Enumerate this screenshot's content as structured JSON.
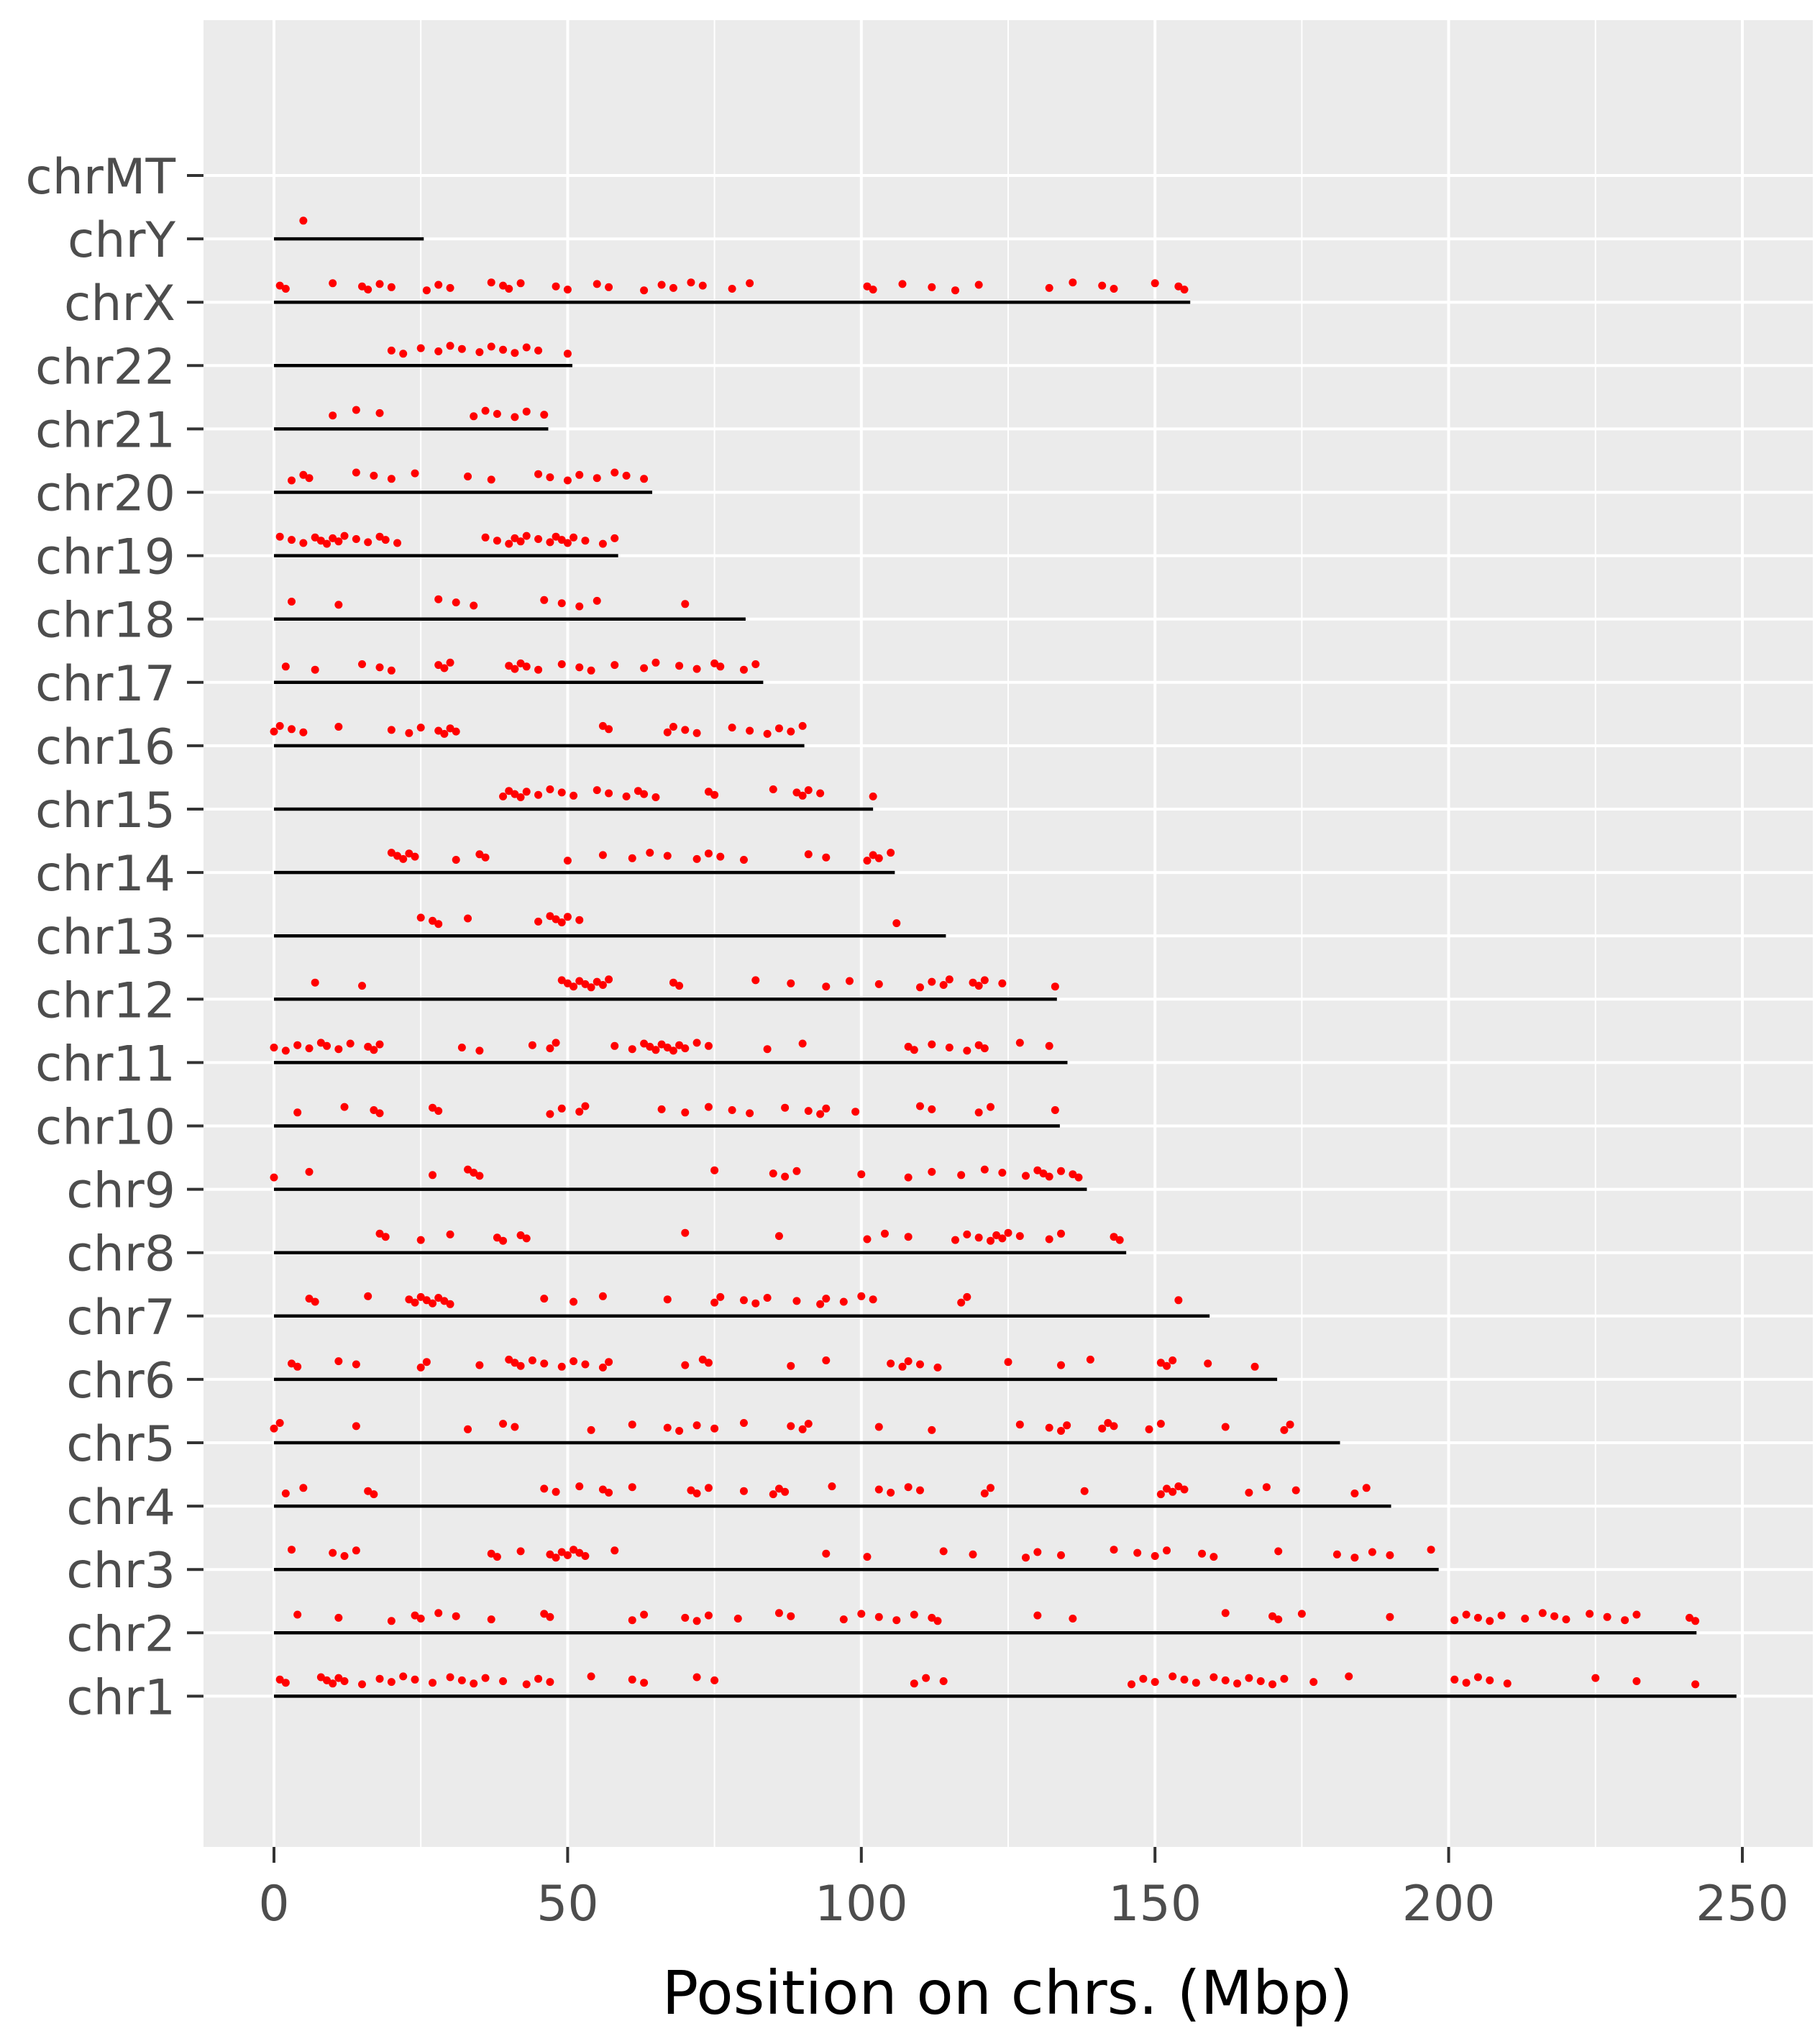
{
  "chart_data": {
    "type": "scatter",
    "title": "",
    "xlabel": "Position on chrs. (Mbp)",
    "ylabel": "",
    "xlim": [
      -12,
      262
    ],
    "xticks": [
      0,
      50,
      100,
      150,
      200,
      250
    ],
    "grid": true,
    "legend": "none",
    "colors": {
      "panel": "#ebebeb",
      "grid": "#ffffff",
      "point": "#ff0000",
      "line": "#000000",
      "text": "#4d4d4d",
      "axis_title": "#000000"
    },
    "chromosomes": [
      {
        "name": "chrMT",
        "length": 0.0166,
        "positions": []
      },
      {
        "name": "chrY",
        "length": 25.5,
        "positions": [
          5
        ]
      },
      {
        "name": "chrX",
        "length": 156,
        "positions": [
          1,
          2,
          10,
          15,
          16,
          18,
          20,
          26,
          28,
          30,
          37,
          39,
          40,
          42,
          48,
          50,
          55,
          57,
          63,
          66,
          68,
          71,
          73,
          78,
          81,
          101,
          102,
          107,
          112,
          116,
          120,
          132,
          136,
          141,
          143,
          150,
          154,
          155
        ]
      },
      {
        "name": "chr22",
        "length": 50.8,
        "positions": [
          20,
          22,
          25,
          28,
          30,
          32,
          35,
          37,
          39,
          41,
          43,
          45,
          50
        ]
      },
      {
        "name": "chr21",
        "length": 46.7,
        "positions": [
          10,
          14,
          18,
          34,
          36,
          38,
          41,
          43,
          46
        ]
      },
      {
        "name": "chr20",
        "length": 64.4,
        "positions": [
          3,
          5,
          6,
          14,
          17,
          20,
          24,
          33,
          37,
          45,
          47,
          50,
          52,
          55,
          58,
          60,
          63
        ]
      },
      {
        "name": "chr19",
        "length": 58.6,
        "positions": [
          1,
          3,
          5,
          7,
          8,
          9,
          10,
          11,
          12,
          14,
          16,
          18,
          19,
          21,
          36,
          38,
          40,
          41,
          42,
          43,
          45,
          47,
          48,
          49,
          50,
          51,
          53,
          56,
          58
        ]
      },
      {
        "name": "chr18",
        "length": 80.3,
        "positions": [
          3,
          11,
          28,
          31,
          34,
          46,
          49,
          52,
          55,
          70
        ]
      },
      {
        "name": "chr17",
        "length": 83.3,
        "positions": [
          2,
          7,
          15,
          18,
          20,
          28,
          29,
          30,
          40,
          41,
          42,
          43,
          45,
          49,
          52,
          54,
          58,
          63,
          65,
          69,
          72,
          75,
          76,
          80,
          82
        ]
      },
      {
        "name": "chr16",
        "length": 90.3,
        "positions": [
          0,
          1,
          3,
          5,
          11,
          20,
          23,
          25,
          28,
          29,
          30,
          31,
          56,
          57,
          67,
          68,
          70,
          72,
          78,
          81,
          84,
          86,
          88,
          90
        ]
      },
      {
        "name": "chr15",
        "length": 102,
        "positions": [
          39,
          40,
          41,
          42,
          43,
          45,
          47,
          49,
          51,
          55,
          57,
          60,
          62,
          63,
          65,
          74,
          75,
          85,
          89,
          90,
          91,
          93,
          102
        ]
      },
      {
        "name": "chr14",
        "length": 105.7,
        "positions": [
          20,
          21,
          22,
          23,
          24,
          31,
          35,
          36,
          50,
          56,
          61,
          64,
          67,
          72,
          74,
          76,
          80,
          91,
          94,
          101,
          102,
          103,
          105
        ]
      },
      {
        "name": "chr13",
        "length": 114.4,
        "positions": [
          25,
          27,
          28,
          33,
          45,
          47,
          48,
          49,
          50,
          52,
          106
        ]
      },
      {
        "name": "chr12",
        "length": 133.3,
        "positions": [
          7,
          15,
          49,
          50,
          51,
          52,
          53,
          54,
          55,
          56,
          57,
          68,
          69,
          82,
          88,
          94,
          98,
          103,
          110,
          112,
          114,
          115,
          119,
          120,
          121,
          124,
          133
        ]
      },
      {
        "name": "chr11",
        "length": 135.1,
        "positions": [
          0,
          2,
          4,
          6,
          8,
          9,
          11,
          13,
          16,
          17,
          18,
          32,
          35,
          44,
          47,
          48,
          58,
          61,
          63,
          64,
          65,
          66,
          67,
          68,
          69,
          70,
          72,
          74,
          84,
          90,
          108,
          109,
          112,
          115,
          118,
          120,
          121,
          127,
          132
        ]
      },
      {
        "name": "chr10",
        "length": 133.8,
        "positions": [
          4,
          12,
          17,
          18,
          27,
          28,
          47,
          49,
          52,
          53,
          66,
          70,
          74,
          78,
          81,
          87,
          91,
          93,
          94,
          99,
          110,
          112,
          120,
          122,
          133
        ]
      },
      {
        "name": "chr9",
        "length": 138.4,
        "positions": [
          0,
          6,
          27,
          33,
          34,
          35,
          75,
          85,
          87,
          89,
          100,
          108,
          112,
          117,
          121,
          124,
          128,
          130,
          131,
          132,
          134,
          136,
          137
        ]
      },
      {
        "name": "chr8",
        "length": 145.1,
        "positions": [
          18,
          19,
          25,
          30,
          38,
          39,
          42,
          43,
          70,
          86,
          101,
          104,
          108,
          116,
          118,
          120,
          122,
          123,
          124,
          125,
          127,
          132,
          134,
          143,
          144
        ]
      },
      {
        "name": "chr7",
        "length": 159.3,
        "positions": [
          6,
          7,
          16,
          23,
          24,
          25,
          26,
          27,
          28,
          29,
          30,
          46,
          51,
          56,
          67,
          75,
          76,
          80,
          82,
          84,
          89,
          93,
          94,
          97,
          100,
          102,
          117,
          118,
          154
        ]
      },
      {
        "name": "chr6",
        "length": 170.8,
        "positions": [
          3,
          4,
          11,
          14,
          25,
          26,
          35,
          40,
          41,
          42,
          44,
          46,
          49,
          51,
          53,
          56,
          57,
          70,
          73,
          74,
          88,
          94,
          105,
          107,
          108,
          110,
          113,
          125,
          134,
          139,
          151,
          152,
          153,
          159,
          167
        ]
      },
      {
        "name": "chr5",
        "length": 181.5,
        "positions": [
          0,
          1,
          14,
          33,
          39,
          41,
          54,
          61,
          67,
          69,
          72,
          75,
          80,
          88,
          90,
          91,
          103,
          112,
          127,
          132,
          134,
          135,
          141,
          142,
          143,
          149,
          151,
          162,
          172,
          173
        ]
      },
      {
        "name": "chr4",
        "length": 190.2,
        "positions": [
          2,
          5,
          16,
          17,
          46,
          48,
          52,
          56,
          57,
          61,
          71,
          72,
          74,
          80,
          85,
          86,
          87,
          95,
          103,
          105,
          108,
          110,
          121,
          122,
          138,
          151,
          152,
          153,
          154,
          155,
          166,
          169,
          174,
          184,
          186
        ]
      },
      {
        "name": "chr3",
        "length": 198.3,
        "positions": [
          3,
          10,
          12,
          14,
          37,
          38,
          42,
          47,
          48,
          49,
          50,
          51,
          52,
          53,
          58,
          94,
          101,
          114,
          119,
          128,
          130,
          134,
          143,
          147,
          150,
          152,
          158,
          160,
          171,
          181,
          184,
          187,
          190,
          197
        ]
      },
      {
        "name": "chr2",
        "length": 242.2,
        "positions": [
          4,
          11,
          20,
          24,
          25,
          28,
          31,
          37,
          46,
          47,
          61,
          63,
          70,
          72,
          74,
          79,
          86,
          88,
          97,
          100,
          103,
          106,
          109,
          112,
          113,
          130,
          136,
          162,
          170,
          171,
          175,
          190,
          201,
          203,
          205,
          207,
          209,
          213,
          216,
          218,
          220,
          224,
          227,
          230,
          232,
          241,
          242
        ]
      },
      {
        "name": "chr1",
        "length": 249,
        "positions": [
          1,
          2,
          8,
          9,
          10,
          11,
          12,
          15,
          18,
          20,
          22,
          24,
          27,
          30,
          32,
          34,
          36,
          39,
          43,
          45,
          47,
          54,
          61,
          63,
          72,
          75,
          109,
          111,
          114,
          146,
          148,
          150,
          153,
          155,
          157,
          160,
          162,
          164,
          166,
          168,
          170,
          172,
          177,
          183,
          201,
          203,
          205,
          207,
          210,
          225,
          232,
          242
        ]
      }
    ]
  }
}
